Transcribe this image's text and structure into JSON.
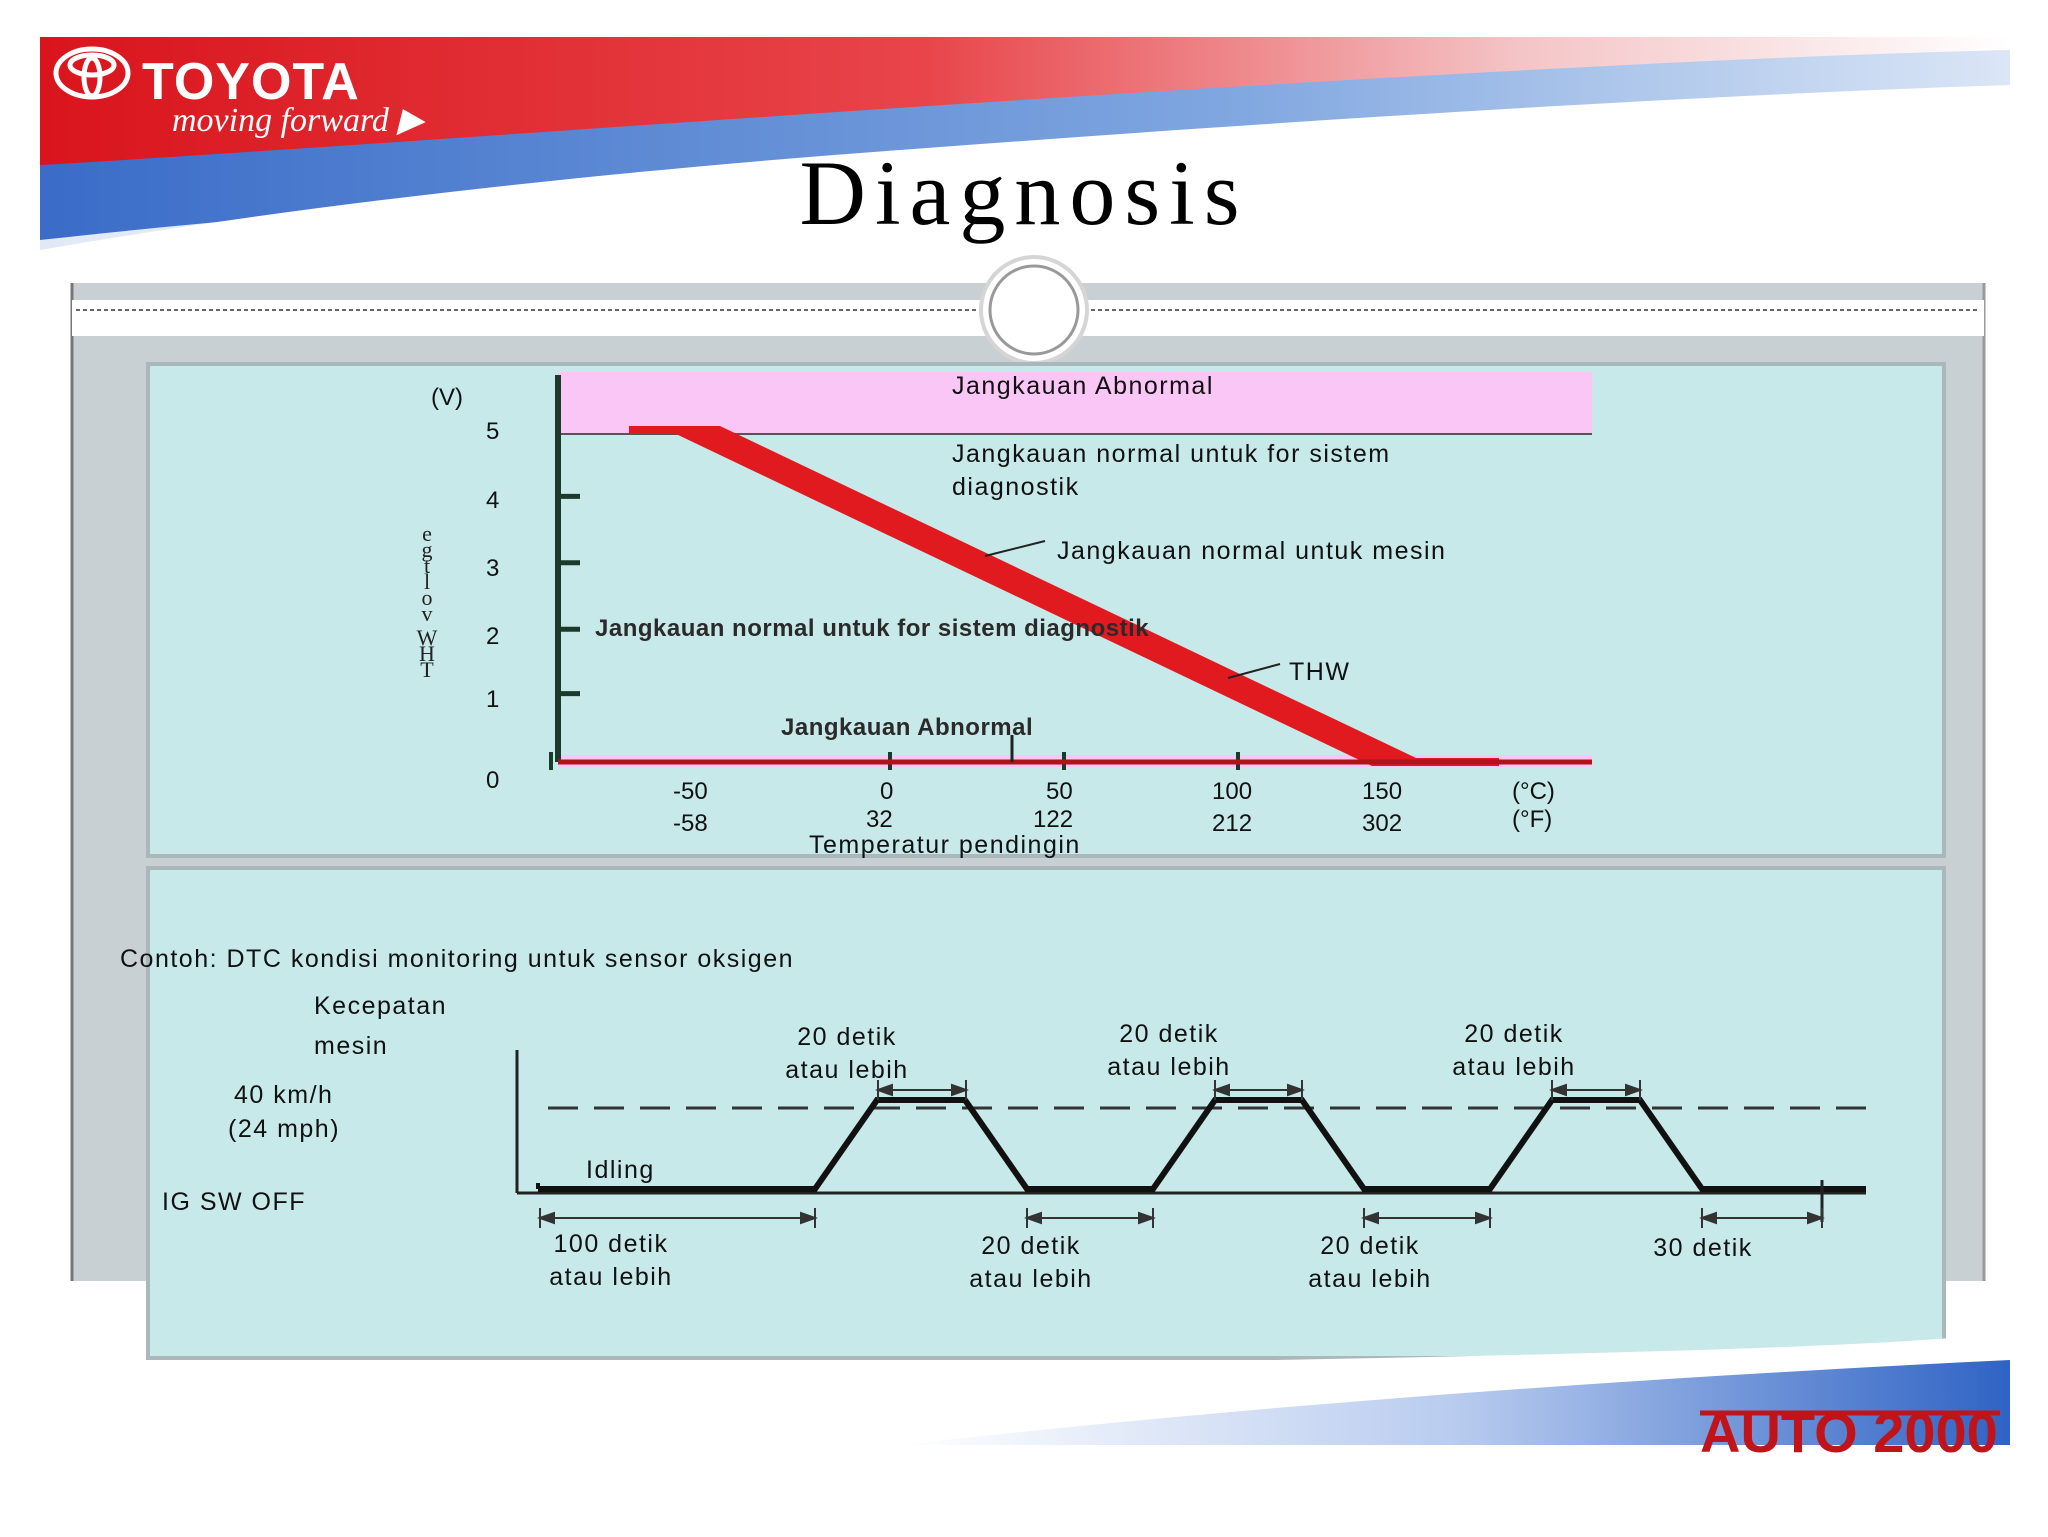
{
  "brand": {
    "name": "TOYOTA",
    "tagline": "moving forward ▶",
    "footer_logo": "AUTO 2000"
  },
  "title": "Diagnosis",
  "colors": {
    "red": "#e01a1f",
    "pink": "#f9c6f6",
    "panel": "#c8e9ea",
    "blue": "#3b6fc9"
  },
  "chart_data": [
    {
      "type": "line",
      "series": [
        {
          "name": "THW",
          "x": [
            -75,
            -50,
            150,
            175
          ],
          "y": [
            5,
            5,
            0,
            0
          ]
        }
      ],
      "x_ticks_c": [
        "-50",
        "0",
        "50",
        "100",
        "150"
      ],
      "x_ticks_f": [
        "-58",
        "32",
        "122",
        "212",
        "302"
      ],
      "x_unit_c": "(°C)",
      "x_unit_f": "(°F)",
      "y_ticks": [
        "0",
        "1",
        "2",
        "3",
        "4",
        "5"
      ],
      "y_unit": "(V)",
      "ylabel_chars": [
        "e",
        "g",
        "t",
        "l",
        "o",
        "v",
        "W",
        "H",
        "T"
      ],
      "xlabel": "Temperatur pendingin",
      "annotations": {
        "abnormal_top": "Jangkauan Abnormal",
        "normal_diag_1": "Jangkauan normal untuk  for sistem",
        "normal_diag_2": "diagnostik",
        "normal_engine": "Jangkauan normal untuk mesin",
        "thw": "THW",
        "normal_diag_inner": "Jangkauan normal untuk  for sistem diagnostik",
        "abnormal_bottom": "Jangkauan Abnormal"
      }
    },
    {
      "type": "line",
      "title": "Contoh: DTC kondisi monitoring untuk sensor oksigen",
      "labels": {
        "speed_1": "Kecepatan",
        "speed_2": "mesin",
        "kmh": "40 km/h",
        "mph": "(24 mph)",
        "ig_off": "IG SW OFF",
        "idling": "Idling"
      },
      "durations": [
        {
          "l1": "100 detik",
          "l2": "atau lebih"
        },
        {
          "l1": "20 detik",
          "l2": "atau lebih"
        },
        {
          "l1": "20 detik",
          "l2": "atau lebih"
        },
        {
          "l1": "20 detik",
          "l2": "atau lebih"
        },
        {
          "l1": "20 detik",
          "l2": "atau lebih"
        },
        {
          "l1": "20 detik",
          "l2": "atau lebih"
        },
        {
          "l1": "30 detik"
        }
      ]
    }
  ]
}
